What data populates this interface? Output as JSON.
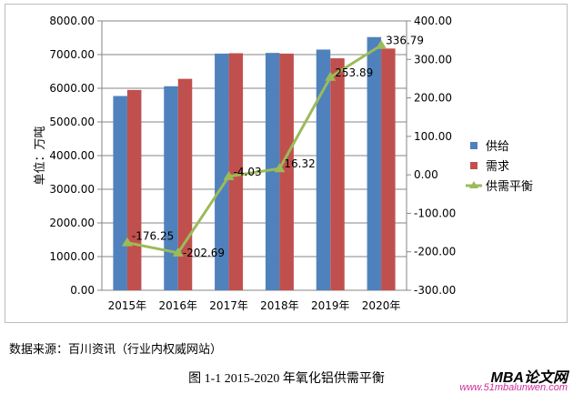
{
  "chart_data": {
    "type": "bar+line",
    "categories": [
      "2015年",
      "2016年",
      "2017年",
      "2018年",
      "2019年",
      "2020年"
    ],
    "ylabel": "单位：万吨",
    "ylim": [
      0,
      8000
    ],
    "y2lim": [
      -300,
      400
    ],
    "yticks": [
      "0.00",
      "1000.00",
      "2000.00",
      "3000.00",
      "4000.00",
      "5000.00",
      "6000.00",
      "7000.00",
      "8000.00"
    ],
    "y2ticks": [
      "-300.00",
      "-200.00",
      "-100.00",
      "0.00",
      "100.00",
      "200.00",
      "300.00",
      "400.00"
    ],
    "grid": true,
    "legend_position": "right",
    "series": [
      {
        "name": "供给",
        "type": "bar",
        "axis": "left",
        "color": "#4f81bd",
        "values": [
          5770,
          6060,
          7030,
          7050,
          7150,
          7520
        ]
      },
      {
        "name": "需求",
        "type": "bar",
        "axis": "left",
        "color": "#c0504d",
        "values": [
          5950,
          6280,
          7040,
          7030,
          6890,
          7180
        ]
      },
      {
        "name": "供需平衡",
        "type": "line",
        "axis": "right",
        "color": "#9bbb59",
        "values": [
          -176.25,
          -202.69,
          -4.03,
          16.32,
          253.89,
          336.79
        ],
        "labels": [
          "-176.25",
          "-202.69",
          "-4.03",
          "16.32",
          "253.89",
          "336.79"
        ]
      }
    ]
  },
  "source": "数据来源：百川资讯（行业内权威网站）",
  "caption": "图 1-1 2015-2020 年氧化铝供需平衡",
  "watermark": {
    "title": "MBA论文网",
    "url": "www.51mbalunwen.com"
  }
}
